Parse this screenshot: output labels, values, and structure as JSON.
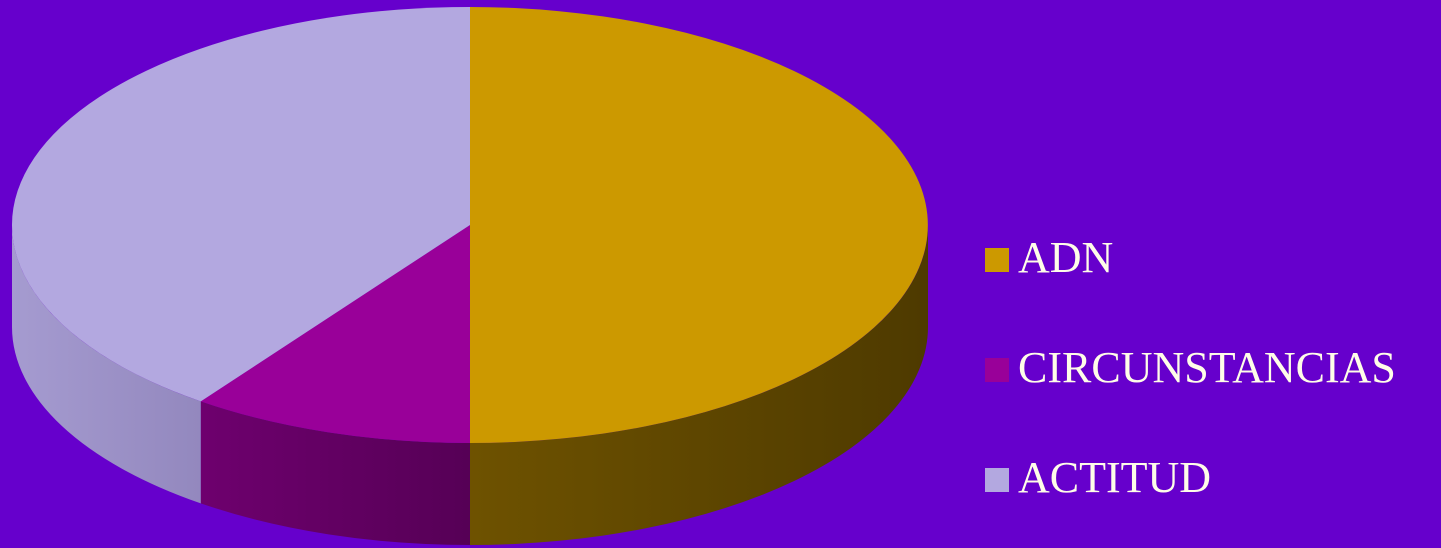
{
  "chart_data": {
    "type": "pie",
    "style": "3d",
    "categories": [
      "ADN",
      "CIRCUNSTANCIAS",
      "ACTITUD"
    ],
    "values": [
      50,
      10,
      40
    ],
    "colors": [
      "#cc9900",
      "#990099",
      "#b3a8e0"
    ],
    "side_colors": [
      "#6e5200",
      "#5a005a",
      "#9c92c6"
    ],
    "legend_position": "right",
    "background": "#6600cc"
  },
  "legend": {
    "items": [
      {
        "label": "ADN",
        "color": "#cc9900"
      },
      {
        "label": "CIRCUNSTANCIAS",
        "color": "#990099"
      },
      {
        "label": "ACTITUD",
        "color": "#b3a8e0"
      }
    ]
  }
}
